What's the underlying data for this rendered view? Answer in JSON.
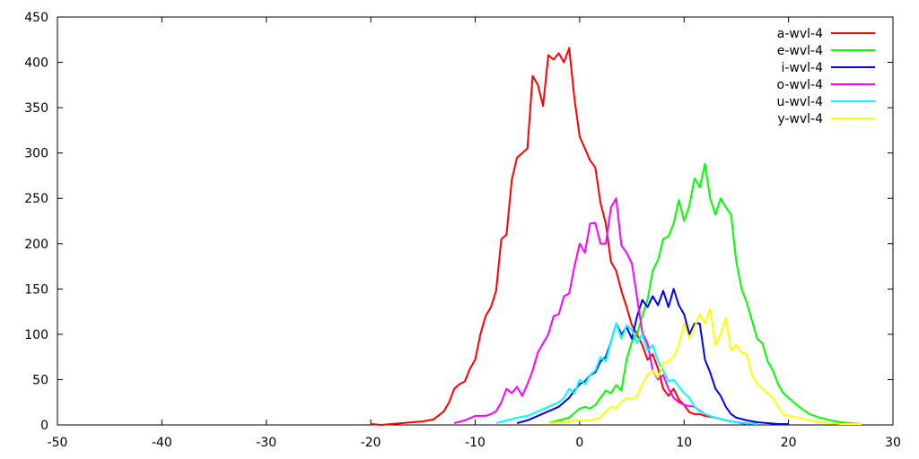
{
  "chart_data": {
    "type": "line",
    "title": "",
    "xlabel": "",
    "ylabel": "",
    "xlim": [
      -50,
      30
    ],
    "ylim": [
      0,
      450
    ],
    "xticks": [
      -50,
      -40,
      -30,
      -20,
      -10,
      0,
      10,
      20,
      30
    ],
    "yticks": [
      0,
      50,
      100,
      150,
      200,
      250,
      300,
      350,
      400,
      450
    ],
    "grid": false,
    "legend": "top-right",
    "series": [
      {
        "name": "a-wvl-4",
        "color": "#ff0000",
        "x": [
          -20,
          -19,
          -18,
          -17,
          -16,
          -15,
          -14,
          -13,
          -12.5,
          -12,
          -11.5,
          -11,
          -10.5,
          -10,
          -9.5,
          -9,
          -8.5,
          -8,
          -7.5,
          -7,
          -6.5,
          -6,
          -5.5,
          -5,
          -4.5,
          -4,
          -3.5,
          -3,
          -2.5,
          -2,
          -1.5,
          -1,
          -0.5,
          0,
          0.5,
          1,
          1.5,
          2,
          2.5,
          3,
          3.5,
          4,
          4.5,
          5,
          5.5,
          6,
          6.5,
          7,
          7.5,
          8,
          8.5,
          9,
          9.5,
          10,
          10.5,
          11,
          11.5,
          12,
          13,
          14,
          15,
          16,
          17
        ],
        "y": [
          1,
          0,
          1,
          2,
          3,
          4,
          6,
          15,
          25,
          40,
          45,
          48,
          62,
          72,
          100,
          120,
          130,
          148,
          205,
          210,
          270,
          295,
          300,
          305,
          385,
          375,
          352,
          408,
          403,
          410,
          400,
          416,
          360,
          318,
          305,
          292,
          284,
          245,
          222,
          180,
          170,
          148,
          130,
          110,
          100,
          88,
          72,
          78,
          62,
          40,
          32,
          40,
          28,
          22,
          14,
          12,
          12,
          10,
          8,
          5,
          3,
          2,
          1
        ]
      },
      {
        "name": "e-wvl-4",
        "color": "#00ff00",
        "x": [
          -3,
          -2,
          -1,
          0,
          0.5,
          1,
          1.5,
          2,
          2.5,
          3,
          3.5,
          4,
          4.5,
          5,
          5.5,
          6,
          6.5,
          7,
          7.5,
          8,
          8.5,
          9,
          9.5,
          10,
          10.5,
          11,
          11.5,
          12,
          12.5,
          13,
          13.5,
          14,
          14.5,
          15,
          15.5,
          16,
          16.5,
          17,
          17.5,
          18,
          18.5,
          19,
          19.5,
          20,
          21,
          22,
          23,
          24,
          25,
          26,
          27
        ],
        "y": [
          2,
          5,
          8,
          18,
          20,
          18,
          22,
          30,
          38,
          35,
          44,
          38,
          72,
          92,
          100,
          120,
          138,
          170,
          182,
          205,
          208,
          222,
          248,
          225,
          242,
          272,
          262,
          288,
          250,
          232,
          250,
          240,
          232,
          180,
          150,
          135,
          115,
          95,
          90,
          70,
          60,
          45,
          35,
          30,
          20,
          12,
          8,
          5,
          3,
          2,
          1
        ]
      },
      {
        "name": "i-wvl-4",
        "color": "#0000ff",
        "x": [
          -6,
          -5,
          -4,
          -3,
          -2,
          -1,
          -0.5,
          0,
          0.5,
          1,
          1.5,
          2,
          2.5,
          3,
          3.5,
          4,
          4.5,
          5,
          5.5,
          6,
          6.5,
          7,
          7.5,
          8,
          8.5,
          9,
          9.5,
          10,
          10.5,
          11,
          11.5,
          12,
          12.5,
          13,
          13.5,
          14,
          14.5,
          15,
          16,
          17,
          18,
          19,
          20
        ],
        "y": [
          2,
          5,
          10,
          15,
          20,
          30,
          38,
          45,
          48,
          55,
          58,
          70,
          75,
          92,
          112,
          100,
          108,
          95,
          120,
          138,
          130,
          142,
          132,
          148,
          130,
          150,
          132,
          122,
          100,
          112,
          112,
          72,
          58,
          40,
          32,
          20,
          12,
          8,
          5,
          3,
          2,
          1,
          1
        ]
      },
      {
        "name": "o-wvl-4",
        "color": "#ff00ff",
        "x": [
          -12,
          -11,
          -10,
          -9,
          -8.5,
          -8,
          -7.5,
          -7,
          -6.5,
          -6,
          -5.5,
          -5,
          -4.5,
          -4,
          -3.5,
          -3,
          -2.5,
          -2,
          -1.5,
          -1,
          -0.5,
          0,
          0.5,
          1,
          1.5,
          2,
          2.5,
          3,
          3.5,
          4,
          4.5,
          5,
          5.5,
          6,
          6.5,
          7,
          7.5,
          8,
          8.5,
          9,
          9.5,
          10,
          11,
          12,
          13,
          14,
          15,
          16
        ],
        "y": [
          2,
          5,
          10,
          10,
          12,
          15,
          25,
          40,
          35,
          42,
          32,
          45,
          60,
          80,
          90,
          100,
          120,
          122,
          142,
          145,
          175,
          200,
          190,
          222,
          223,
          200,
          200,
          240,
          250,
          198,
          190,
          178,
          140,
          102,
          90,
          60,
          50,
          55,
          40,
          30,
          25,
          22,
          20,
          12,
          8,
          5,
          3,
          1
        ]
      },
      {
        "name": "u-wvl-4",
        "color": "#00ffff",
        "x": [
          -8,
          -7,
          -6,
          -5,
          -4,
          -3,
          -2,
          -1.5,
          -1,
          -0.5,
          0,
          0.5,
          1,
          1.5,
          2,
          2.5,
          3,
          3.5,
          4,
          4.5,
          5,
          5.5,
          6,
          6.5,
          7,
          7.5,
          8,
          8.5,
          9,
          9.5,
          10,
          10.5,
          11,
          11.5,
          12,
          12.5,
          13,
          14,
          15,
          16,
          17
        ],
        "y": [
          2,
          5,
          8,
          10,
          15,
          20,
          25,
          30,
          40,
          35,
          50,
          45,
          55,
          60,
          75,
          70,
          92,
          112,
          95,
          110,
          105,
          90,
          100,
          82,
          88,
          70,
          60,
          48,
          50,
          42,
          35,
          30,
          20,
          15,
          12,
          10,
          8,
          5,
          3,
          2,
          1
        ]
      },
      {
        "name": "y-wvl-4",
        "color": "#ffff00",
        "x": [
          -3,
          -2,
          -1,
          0,
          1,
          2,
          2.5,
          3,
          3.5,
          4,
          4.5,
          5,
          5.5,
          6,
          6.5,
          7,
          7.5,
          8,
          8.5,
          9,
          9.5,
          10,
          10.5,
          11,
          11.5,
          12,
          12.5,
          13,
          13.5,
          14,
          14.5,
          15,
          15.5,
          16,
          16.5,
          17,
          17.5,
          18,
          18.5,
          19,
          19.5,
          20,
          21,
          22,
          23,
          24,
          25,
          26,
          27
        ],
        "y": [
          2,
          3,
          4,
          5,
          5,
          8,
          15,
          20,
          18,
          25,
          30,
          28,
          32,
          45,
          55,
          60,
          52,
          68,
          70,
          75,
          88,
          112,
          95,
          108,
          122,
          112,
          128,
          88,
          100,
          118,
          82,
          88,
          80,
          78,
          55,
          45,
          40,
          35,
          30,
          20,
          12,
          10,
          8,
          5,
          3,
          2,
          1,
          1,
          1
        ]
      }
    ]
  }
}
